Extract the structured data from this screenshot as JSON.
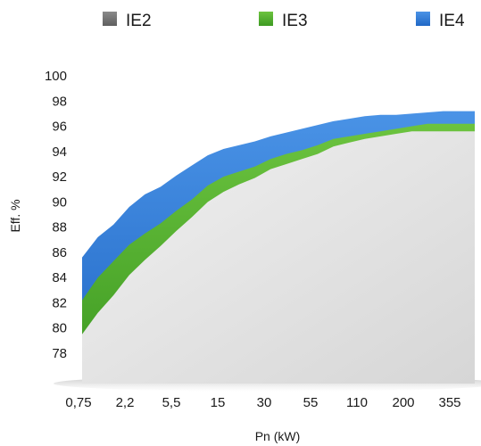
{
  "chart_data": {
    "type": "area",
    "title": "",
    "xlabel": "Pn (kW)",
    "ylabel": "Eff. %",
    "x_tick_labels": [
      "0,75",
      "2,2",
      "5,5",
      "15",
      "30",
      "55",
      "110",
      "200",
      "355"
    ],
    "y_ticks": [
      78,
      80,
      82,
      84,
      86,
      88,
      90,
      92,
      94,
      96,
      98,
      100
    ],
    "ylim": [
      77,
      100
    ],
    "grid": false,
    "legend_position": "top",
    "x": [
      "0,75",
      "1,1",
      "1,5",
      "2,2",
      "3",
      "4",
      "5,5",
      "7,5",
      "11",
      "15",
      "18,5",
      "22",
      "30",
      "37",
      "45",
      "55",
      "75",
      "90",
      "110",
      "132",
      "160",
      "200",
      "250",
      "315",
      "355",
      "375"
    ],
    "series": [
      {
        "name": "IE2",
        "color": "#7a7a7a",
        "values": [
          79.5,
          81.2,
          82.6,
          84.2,
          85.4,
          86.5,
          87.7,
          88.8,
          90.0,
          90.8,
          91.4,
          91.9,
          92.6,
          93.0,
          93.4,
          93.8,
          94.4,
          94.7,
          95.0,
          95.2,
          95.4,
          95.6,
          95.6,
          95.6,
          95.6,
          95.6
        ]
      },
      {
        "name": "IE3",
        "color": "#4cae2c",
        "values": [
          82.2,
          84.0,
          85.3,
          86.6,
          87.5,
          88.3,
          89.3,
          90.2,
          91.3,
          92.0,
          92.4,
          92.8,
          93.4,
          93.8,
          94.1,
          94.5,
          95.0,
          95.2,
          95.4,
          95.6,
          95.8,
          96.0,
          96.2,
          96.2,
          96.2,
          96.2
        ]
      },
      {
        "name": "IE4",
        "color": "#2f7ad6",
        "values": [
          85.6,
          87.2,
          88.2,
          89.6,
          90.6,
          91.2,
          92.1,
          92.9,
          93.7,
          94.2,
          94.5,
          94.8,
          95.2,
          95.5,
          95.8,
          96.1,
          96.4,
          96.6,
          96.8,
          96.9,
          96.9,
          97.0,
          97.1,
          97.2,
          97.2,
          97.2
        ]
      }
    ]
  }
}
